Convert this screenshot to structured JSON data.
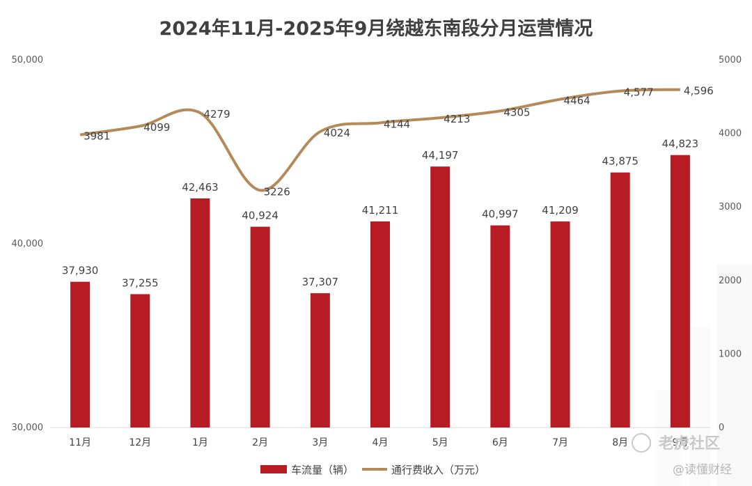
{
  "chart_data": {
    "type": "bar+line",
    "title": "2024年11月-2025年9月绕越东南段分月运营情况",
    "categories": [
      "11月",
      "12月",
      "1月",
      "2月",
      "3月",
      "4月",
      "5月",
      "6月",
      "7月",
      "8月",
      "9月"
    ],
    "series": [
      {
        "name": "车流量（辆）",
        "kind": "bar",
        "axis": "left",
        "color": "#b71c24",
        "values": [
          37930,
          37255,
          42463,
          40924,
          37307,
          41211,
          44197,
          40997,
          41209,
          43875,
          44823
        ],
        "labels": [
          "37,930",
          "37,255",
          "42,463",
          "40,924",
          "37,307",
          "41,211",
          "44,197",
          "40,997",
          "41,209",
          "43,875",
          "44,823"
        ]
      },
      {
        "name": "通行费收入（万元）",
        "kind": "line",
        "axis": "right",
        "color": "#b58a5a",
        "values": [
          3981,
          4099,
          4279,
          3226,
          4024,
          4144,
          4213,
          4305,
          4464,
          4577,
          4596
        ],
        "labels": [
          "3981",
          "4099",
          "4279",
          "3226",
          "4024",
          "4144",
          "4213",
          "4305",
          "4464",
          "4,577",
          "4,596"
        ]
      }
    ],
    "y_left": {
      "min": 30000,
      "max": 50000,
      "ticks": [
        30000,
        40000,
        50000
      ],
      "tick_labels": [
        "30,000",
        "40,000",
        "50,000"
      ]
    },
    "y_right": {
      "min": 0,
      "max": 5000,
      "ticks": [
        0,
        1000,
        2000,
        3000,
        4000,
        5000
      ],
      "tick_labels": [
        "0",
        "1000",
        "2000",
        "3000",
        "4000",
        "5000"
      ]
    },
    "legend_position": "bottom-center",
    "grid": false
  },
  "watermark": {
    "primary": "老虎社区",
    "secondary": "@读懂财经"
  }
}
